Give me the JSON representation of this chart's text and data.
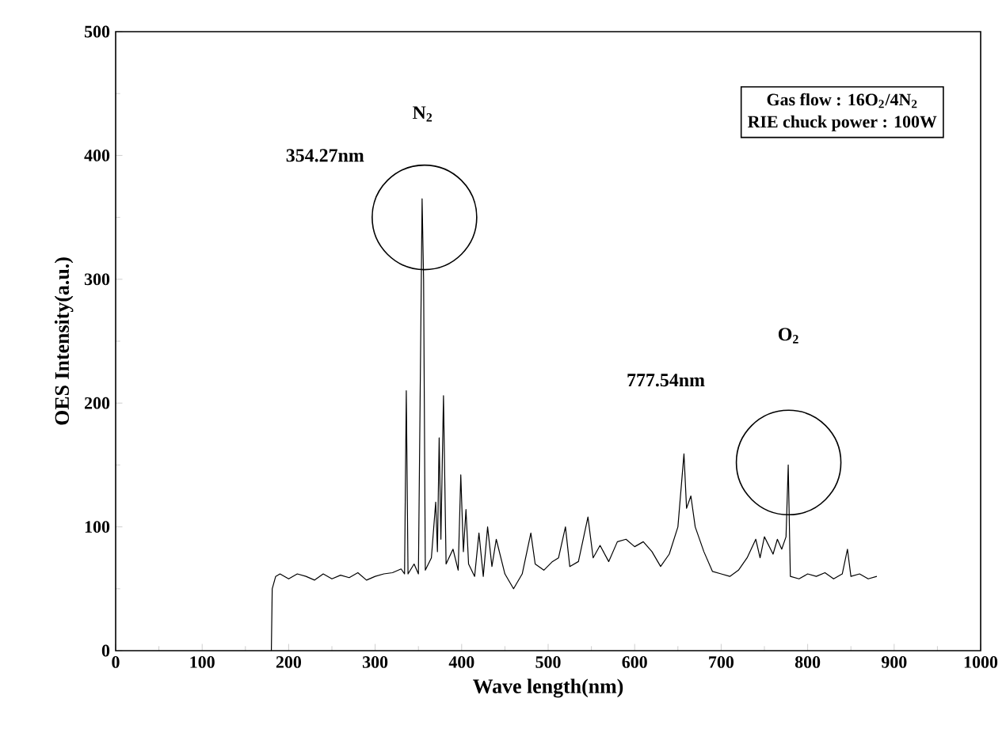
{
  "chart_data": {
    "type": "line",
    "xlabel": "Wave length(nm)",
    "ylabel": "OES Intensity(a.u.)",
    "xlim": [
      0,
      1000
    ],
    "xticks": [
      0,
      100,
      200,
      300,
      400,
      500,
      600,
      700,
      800,
      900,
      1000
    ],
    "ylim": [
      0,
      500
    ],
    "yticks": [
      0,
      100,
      200,
      300,
      400,
      500
    ],
    "marker": "none",
    "line_style": "solid",
    "series": [
      {
        "color": "#000000",
        "x": [
          180,
          181,
          185,
          190,
          200,
          210,
          220,
          230,
          240,
          250,
          260,
          270,
          280,
          290,
          300,
          310,
          320,
          330,
          334,
          336,
          338,
          345,
          350,
          354.27,
          356,
          358,
          365,
          370,
          372,
          374,
          376,
          379,
          382,
          390,
          396,
          399,
          402,
          405,
          408,
          415,
          420,
          425,
          430,
          435,
          440,
          450,
          460,
          470,
          480,
          485,
          495,
          505,
          512,
          520,
          525,
          535,
          546,
          552,
          560,
          570,
          580,
          590,
          600,
          610,
          620,
          630,
          640,
          650,
          657,
          660,
          665,
          670,
          680,
          690,
          700,
          710,
          720,
          730,
          740,
          745,
          750,
          760,
          765,
          770,
          775,
          777.54,
          780,
          790,
          800,
          810,
          820,
          830,
          840,
          846,
          850,
          860,
          870,
          880
        ],
        "values": [
          0,
          50,
          60,
          62,
          58,
          62,
          60,
          57,
          62,
          58,
          61,
          59,
          63,
          57,
          60,
          62,
          63,
          66,
          62,
          210,
          62,
          70,
          62,
          365,
          300,
          65,
          75,
          120,
          80,
          172,
          90,
          206,
          70,
          82,
          65,
          142,
          80,
          114,
          70,
          60,
          95,
          60,
          100,
          68,
          90,
          62,
          50,
          62,
          95,
          70,
          65,
          72,
          75,
          100,
          68,
          72,
          108,
          75,
          85,
          72,
          88,
          90,
          84,
          88,
          80,
          68,
          78,
          100,
          159,
          115,
          125,
          100,
          80,
          64,
          62,
          60,
          65,
          75,
          90,
          75,
          92,
          78,
          90,
          82,
          92,
          150,
          60,
          58,
          62,
          60,
          63,
          58,
          62,
          82,
          60,
          62,
          58,
          60
        ]
      }
    ],
    "annotations": [
      "354.27nm",
      "N$_{2}$",
      "777.54nm",
      "O$_{2}$",
      "Gas flow : 16O$_{2}$/4N$_{2}$",
      "RIE chuck power : 100W"
    ]
  }
}
